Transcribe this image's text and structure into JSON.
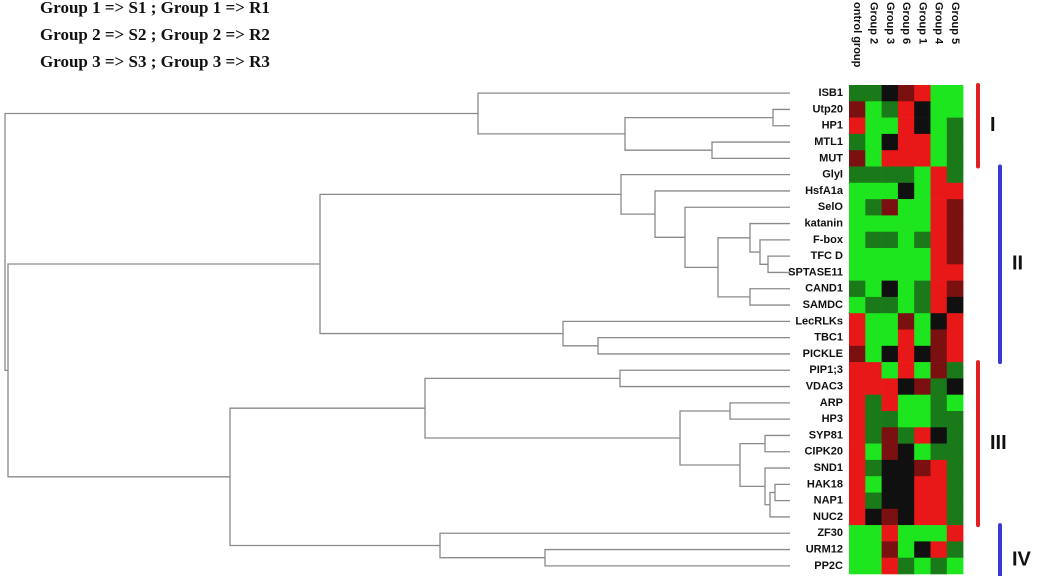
{
  "header": {
    "lines": [
      "Group 1 => S1 ; Group 1 => R1",
      "Group 2 => S2 ; Group 2 => R2",
      "Group 3 => S3 ; Group 3 => R3"
    ]
  },
  "columns": [
    "ontrol group",
    "Group 2",
    "Group 3",
    "Group 6",
    "Group 1",
    "Group 4",
    "Group 5"
  ],
  "rows": [
    "ISB1",
    "Utp20",
    "HP1",
    "MTL1",
    "MUT",
    "GlyI",
    "HsfA1a",
    "SelO",
    "katanin",
    "F-box",
    "TFC D",
    "SPTASE11",
    "CAND1",
    "SAMDC",
    "LecRLKs",
    "TBC1",
    "PICKLE",
    "PIP1;3",
    "VDAC3",
    "ARP",
    "HP3",
    "SYP81",
    "CIPK20",
    "SND1",
    "HAK18",
    "NAP1",
    "NUC2",
    "ZF30",
    "URM12",
    "PP2C"
  ],
  "cells": [
    [
      "#1a7a1a",
      "#1a7a1a",
      "#101010",
      "#7a1010",
      "#e81818",
      "#1ee61e",
      "#1ee61e"
    ],
    [
      "#7a1010",
      "#1ee61e",
      "#1a7a1a",
      "#e81818",
      "#101010",
      "#1ee61e",
      "#1ee61e"
    ],
    [
      "#e81818",
      "#1ee61e",
      "#1ee61e",
      "#e81818",
      "#101010",
      "#1ee61e",
      "#1a7a1a"
    ],
    [
      "#1a7a1a",
      "#1ee61e",
      "#101010",
      "#e81818",
      "#e81818",
      "#1ee61e",
      "#1a7a1a"
    ],
    [
      "#7a1010",
      "#1ee61e",
      "#e81818",
      "#e81818",
      "#e81818",
      "#1ee61e",
      "#1a7a1a"
    ],
    [
      "#1a7a1a",
      "#1a7a1a",
      "#1a7a1a",
      "#1a7a1a",
      "#1ee61e",
      "#e81818",
      "#1a7a1a"
    ],
    [
      "#1ee61e",
      "#1ee61e",
      "#1ee61e",
      "#101010",
      "#1ee61e",
      "#e81818",
      "#e81818"
    ],
    [
      "#1ee61e",
      "#1a7a1a",
      "#7a1010",
      "#1ee61e",
      "#1ee61e",
      "#e81818",
      "#7a1010"
    ],
    [
      "#1ee61e",
      "#1ee61e",
      "#1ee61e",
      "#1ee61e",
      "#1ee61e",
      "#e81818",
      "#7a1010"
    ],
    [
      "#1ee61e",
      "#1a7a1a",
      "#1a7a1a",
      "#1ee61e",
      "#1a7a1a",
      "#e81818",
      "#7a1010"
    ],
    [
      "#1ee61e",
      "#1ee61e",
      "#1ee61e",
      "#1ee61e",
      "#1ee61e",
      "#e81818",
      "#7a1010"
    ],
    [
      "#1ee61e",
      "#1ee61e",
      "#1ee61e",
      "#1ee61e",
      "#1ee61e",
      "#e81818",
      "#e81818"
    ],
    [
      "#1a7a1a",
      "#1ee61e",
      "#101010",
      "#1ee61e",
      "#1a7a1a",
      "#e81818",
      "#7a1010"
    ],
    [
      "#1ee61e",
      "#1a7a1a",
      "#1a7a1a",
      "#1ee61e",
      "#1a7a1a",
      "#e81818",
      "#101010"
    ],
    [
      "#e81818",
      "#1ee61e",
      "#1ee61e",
      "#7a1010",
      "#1ee61e",
      "#101010",
      "#e81818"
    ],
    [
      "#e81818",
      "#1ee61e",
      "#1ee61e",
      "#e81818",
      "#1ee61e",
      "#7a1010",
      "#e81818"
    ],
    [
      "#7a1010",
      "#1ee61e",
      "#101010",
      "#e81818",
      "#101010",
      "#7a1010",
      "#e81818"
    ],
    [
      "#e81818",
      "#e81818",
      "#1ee61e",
      "#e81818",
      "#1ee61e",
      "#7a1010",
      "#1a7a1a"
    ],
    [
      "#e81818",
      "#e81818",
      "#e81818",
      "#101010",
      "#7a1010",
      "#1a7a1a",
      "#101010"
    ],
    [
      "#e81818",
      "#1a7a1a",
      "#e81818",
      "#1ee61e",
      "#1ee61e",
      "#1a7a1a",
      "#1ee61e"
    ],
    [
      "#e81818",
      "#1a7a1a",
      "#1a7a1a",
      "#1ee61e",
      "#1ee61e",
      "#1a7a1a",
      "#1a7a1a"
    ],
    [
      "#e81818",
      "#1a7a1a",
      "#7a1010",
      "#1a7a1a",
      "#e81818",
      "#101010",
      "#1a7a1a"
    ],
    [
      "#e81818",
      "#1ee61e",
      "#7a1010",
      "#101010",
      "#1ee61e",
      "#1a7a1a",
      "#1a7a1a"
    ],
    [
      "#e81818",
      "#1a7a1a",
      "#101010",
      "#101010",
      "#7a1010",
      "#e81818",
      "#1a7a1a"
    ],
    [
      "#e81818",
      "#1ee61e",
      "#101010",
      "#101010",
      "#e81818",
      "#e81818",
      "#1a7a1a"
    ],
    [
      "#e81818",
      "#1a7a1a",
      "#101010",
      "#101010",
      "#e81818",
      "#e81818",
      "#1a7a1a"
    ],
    [
      "#e81818",
      "#101010",
      "#7a1010",
      "#101010",
      "#e81818",
      "#e81818",
      "#1a7a1a"
    ],
    [
      "#1ee61e",
      "#1ee61e",
      "#e81818",
      "#1ee61e",
      "#1ee61e",
      "#1ee61e",
      "#e81818"
    ],
    [
      "#1ee61e",
      "#1ee61e",
      "#7a1010",
      "#1ee61e",
      "#101010",
      "#e81818",
      "#1a7a1a"
    ],
    [
      "#1ee61e",
      "#1ee61e",
      "#e81818",
      "#1a7a1a",
      "#1ee61e",
      "#1a7a1a",
      "#1ee61e"
    ]
  ],
  "clusters": [
    {
      "label": "I",
      "color": "#e02020"
    },
    {
      "label": "II",
      "color": "#3a3ad0"
    },
    {
      "label": "III",
      "color": "#e02020"
    },
    {
      "label": "IV",
      "color": "#3a3ad0"
    }
  ]
}
